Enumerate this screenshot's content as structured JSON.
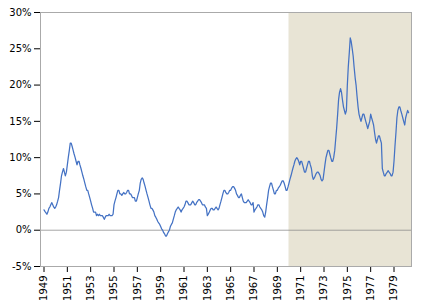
{
  "chart_data": {
    "type": "line",
    "color": "#4472c4",
    "grid": false,
    "xlim": [
      1948.7,
      1980.5
    ],
    "xticks": [
      1949,
      1951,
      1953,
      1955,
      1957,
      1959,
      1961,
      1963,
      1965,
      1967,
      1969,
      1971,
      1973,
      1975,
      1977,
      1979
    ],
    "ylim": [
      -5,
      30
    ],
    "yticks": [
      {
        "value": -5,
        "label": "-5%"
      },
      {
        "value": 0,
        "label": "0%"
      },
      {
        "value": 5,
        "label": "5%"
      },
      {
        "value": 10,
        "label": "10%"
      },
      {
        "value": 15,
        "label": "15%"
      },
      {
        "value": 20,
        "label": "20%"
      },
      {
        "value": 25,
        "label": "25%"
      },
      {
        "value": 30,
        "label": "30%"
      }
    ],
    "shaded_span": [
      1970.0,
      1980.5
    ],
    "shaded_color": "#e8e4d5",
    "zero_line": 0,
    "x": [
      1949.0,
      1949.08,
      1949.17,
      1949.25,
      1949.33,
      1949.42,
      1949.5,
      1949.58,
      1949.67,
      1949.75,
      1949.83,
      1949.92,
      1950.0,
      1950.08,
      1950.17,
      1950.25,
      1950.33,
      1950.42,
      1950.5,
      1950.58,
      1950.67,
      1950.75,
      1950.83,
      1950.92,
      1951.0,
      1951.08,
      1951.17,
      1951.25,
      1951.33,
      1951.42,
      1951.5,
      1951.58,
      1951.67,
      1951.75,
      1951.83,
      1951.92,
      1952.0,
      1952.08,
      1952.17,
      1952.25,
      1952.33,
      1952.42,
      1952.5,
      1952.58,
      1952.67,
      1952.75,
      1952.83,
      1952.92,
      1953.0,
      1953.08,
      1953.17,
      1953.25,
      1953.33,
      1953.42,
      1953.5,
      1953.58,
      1953.67,
      1953.75,
      1953.83,
      1953.92,
      1954.0,
      1954.08,
      1954.17,
      1954.25,
      1954.33,
      1954.42,
      1954.5,
      1954.58,
      1954.67,
      1954.75,
      1954.83,
      1954.92,
      1955.0,
      1955.08,
      1955.17,
      1955.25,
      1955.33,
      1955.42,
      1955.5,
      1955.58,
      1955.67,
      1955.75,
      1955.83,
      1955.92,
      1956.0,
      1956.08,
      1956.17,
      1956.25,
      1956.33,
      1956.42,
      1956.5,
      1956.58,
      1956.67,
      1956.75,
      1956.83,
      1956.92,
      1957.0,
      1957.08,
      1957.17,
      1957.25,
      1957.33,
      1957.42,
      1957.5,
      1957.58,
      1957.67,
      1957.75,
      1957.83,
      1957.92,
      1958.0,
      1958.08,
      1958.17,
      1958.25,
      1958.33,
      1958.42,
      1958.5,
      1958.58,
      1958.67,
      1958.75,
      1958.83,
      1958.92,
      1959.0,
      1959.08,
      1959.17,
      1959.25,
      1959.33,
      1959.42,
      1959.5,
      1959.58,
      1959.67,
      1959.75,
      1959.83,
      1959.92,
      1960.0,
      1960.08,
      1960.17,
      1960.25,
      1960.33,
      1960.42,
      1960.5,
      1960.58,
      1960.67,
      1960.75,
      1960.83,
      1960.92,
      1961.0,
      1961.08,
      1961.17,
      1961.25,
      1961.33,
      1961.42,
      1961.5,
      1961.58,
      1961.67,
      1961.75,
      1961.83,
      1961.92,
      1962.0,
      1962.08,
      1962.17,
      1962.25,
      1962.33,
      1962.42,
      1962.5,
      1962.58,
      1962.67,
      1962.75,
      1962.83,
      1962.92,
      1963.0,
      1963.08,
      1963.17,
      1963.25,
      1963.33,
      1963.42,
      1963.5,
      1963.58,
      1963.67,
      1963.75,
      1963.83,
      1963.92,
      1964.0,
      1964.08,
      1964.17,
      1964.25,
      1964.33,
      1964.42,
      1964.5,
      1964.58,
      1964.67,
      1964.75,
      1964.83,
      1964.92,
      1965.0,
      1965.08,
      1965.17,
      1965.25,
      1965.33,
      1965.42,
      1965.5,
      1965.58,
      1965.67,
      1965.75,
      1965.83,
      1965.92,
      1966.0,
      1966.08,
      1966.17,
      1966.25,
      1966.33,
      1966.42,
      1966.5,
      1966.58,
      1966.67,
      1966.75,
      1966.83,
      1966.92,
      1967.0,
      1967.08,
      1967.17,
      1967.25,
      1967.33,
      1967.42,
      1967.5,
      1967.58,
      1967.67,
      1967.75,
      1967.83,
      1967.92,
      1968.0,
      1968.08,
      1968.17,
      1968.25,
      1968.33,
      1968.42,
      1968.5,
      1968.58,
      1968.67,
      1968.75,
      1968.83,
      1968.92,
      1969.0,
      1969.08,
      1969.17,
      1969.25,
      1969.33,
      1969.42,
      1969.5,
      1969.58,
      1969.67,
      1969.75,
      1969.83,
      1969.92,
      1970.0,
      1970.08,
      1970.17,
      1970.25,
      1970.33,
      1970.42,
      1970.5,
      1970.58,
      1970.67,
      1970.75,
      1970.83,
      1970.92,
      1971.0,
      1971.08,
      1971.17,
      1971.25,
      1971.33,
      1971.42,
      1971.5,
      1971.58,
      1971.67,
      1971.75,
      1971.83,
      1971.92,
      1972.0,
      1972.08,
      1972.17,
      1972.25,
      1972.33,
      1972.42,
      1972.5,
      1972.58,
      1972.67,
      1972.75,
      1972.83,
      1972.92,
      1973.0,
      1973.08,
      1973.17,
      1973.25,
      1973.33,
      1973.42,
      1973.5,
      1973.58,
      1973.67,
      1973.75,
      1973.83,
      1973.92,
      1974.0,
      1974.08,
      1974.17,
      1974.25,
      1974.33,
      1974.42,
      1974.5,
      1974.58,
      1974.67,
      1974.75,
      1974.83,
      1974.92,
      1975.0,
      1975.08,
      1975.17,
      1975.25,
      1975.33,
      1975.42,
      1975.5,
      1975.58,
      1975.67,
      1975.75,
      1975.83,
      1975.92,
      1976.0,
      1976.08,
      1976.17,
      1976.25,
      1976.33,
      1976.42,
      1976.5,
      1976.58,
      1976.67,
      1976.75,
      1976.83,
      1976.92,
      1977.0,
      1977.08,
      1977.17,
      1977.25,
      1977.33,
      1977.42,
      1977.5,
      1977.58,
      1977.67,
      1977.75,
      1977.83,
      1977.92,
      1978.0,
      1978.08,
      1978.17,
      1978.25,
      1978.33,
      1978.42,
      1978.5,
      1978.58,
      1978.67,
      1978.75,
      1978.83,
      1978.92,
      1979.0,
      1979.08,
      1979.17,
      1979.25,
      1979.33,
      1979.42,
      1979.5,
      1979.58,
      1979.67,
      1979.75,
      1979.83,
      1979.92,
      1980.0,
      1980.08,
      1980.17,
      1980.25
    ],
    "values": [
      2.8,
      2.6,
      2.4,
      2.2,
      2.5,
      3.0,
      3.2,
      3.5,
      3.8,
      3.5,
      3.2,
      3.0,
      3.2,
      3.5,
      4.0,
      4.5,
      5.5,
      6.5,
      7.5,
      8.0,
      8.5,
      8.0,
      7.5,
      8.0,
      9.0,
      10.0,
      11.0,
      12.0,
      12.0,
      11.5,
      11.0,
      10.5,
      10.0,
      9.5,
      9.0,
      9.5,
      9.5,
      9.0,
      8.5,
      8.0,
      7.5,
      7.0,
      6.5,
      6.0,
      5.5,
      5.5,
      5.0,
      4.5,
      4.0,
      3.5,
      3.0,
      2.5,
      2.5,
      2.5,
      2.0,
      2.2,
      2.0,
      2.2,
      2.0,
      2.0,
      2.0,
      1.8,
      1.5,
      1.8,
      2.0,
      2.0,
      2.0,
      2.2,
      2.0,
      2.0,
      2.0,
      2.2,
      3.5,
      4.0,
      4.5,
      5.0,
      5.5,
      5.5,
      5.0,
      5.0,
      4.8,
      5.0,
      5.2,
      5.0,
      5.0,
      5.2,
      5.5,
      5.5,
      5.0,
      5.0,
      4.8,
      4.5,
      4.5,
      4.5,
      4.0,
      4.0,
      4.5,
      5.0,
      5.5,
      6.5,
      7.0,
      7.2,
      7.0,
      6.5,
      6.0,
      5.5,
      5.0,
      4.5,
      4.0,
      3.5,
      3.0,
      3.0,
      2.8,
      2.5,
      2.0,
      1.8,
      1.5,
      1.2,
      1.0,
      0.8,
      0.5,
      0.2,
      0.0,
      -0.3,
      -0.5,
      -0.8,
      -0.8,
      -0.5,
      -0.2,
      0.0,
      0.5,
      0.8,
      1.0,
      1.5,
      2.0,
      2.5,
      2.8,
      3.0,
      3.2,
      3.0,
      2.8,
      2.5,
      2.8,
      3.0,
      3.2,
      3.5,
      4.0,
      4.0,
      3.8,
      3.5,
      3.5,
      3.5,
      3.8,
      4.0,
      3.8,
      3.5,
      3.5,
      3.8,
      4.0,
      4.2,
      4.2,
      4.0,
      3.8,
      3.5,
      3.5,
      3.5,
      3.2,
      3.0,
      2.0,
      2.2,
      2.5,
      2.8,
      3.0,
      3.0,
      2.8,
      2.8,
      3.0,
      3.2,
      3.0,
      2.8,
      3.0,
      3.5,
      4.0,
      4.5,
      5.0,
      5.5,
      5.5,
      5.2,
      5.0,
      5.0,
      5.2,
      5.5,
      5.5,
      5.8,
      6.0,
      6.0,
      5.8,
      5.5,
      5.0,
      4.8,
      4.5,
      4.5,
      4.8,
      5.0,
      4.5,
      4.0,
      3.8,
      3.8,
      3.8,
      4.0,
      4.2,
      4.0,
      3.8,
      3.5,
      3.5,
      3.8,
      2.5,
      2.8,
      3.0,
      3.2,
      3.5,
      3.5,
      3.2,
      3.0,
      2.8,
      2.5,
      2.0,
      1.8,
      2.5,
      3.5,
      4.5,
      5.5,
      6.0,
      6.5,
      6.5,
      6.0,
      5.5,
      5.0,
      5.0,
      5.5,
      5.5,
      5.8,
      6.0,
      6.2,
      6.5,
      6.8,
      6.8,
      6.5,
      6.0,
      5.5,
      5.5,
      6.0,
      6.5,
      7.0,
      7.5,
      8.0,
      8.5,
      9.0,
      9.5,
      9.8,
      10.0,
      9.8,
      9.5,
      9.0,
      9.5,
      9.5,
      9.0,
      8.5,
      8.0,
      8.0,
      8.5,
      9.0,
      9.5,
      9.5,
      9.0,
      8.5,
      7.5,
      7.0,
      7.2,
      7.5,
      7.8,
      8.0,
      8.0,
      7.8,
      7.5,
      7.0,
      6.8,
      7.0,
      8.0,
      9.0,
      10.0,
      10.5,
      11.0,
      11.0,
      10.5,
      10.0,
      9.5,
      9.5,
      10.0,
      11.0,
      12.5,
      14.0,
      16.0,
      18.0,
      19.0,
      19.5,
      19.0,
      18.0,
      17.0,
      16.5,
      16.0,
      16.5,
      20.0,
      22.5,
      24.5,
      26.5,
      26.0,
      25.0,
      24.0,
      22.5,
      21.0,
      20.0,
      18.5,
      17.0,
      16.0,
      15.5,
      15.0,
      15.5,
      16.0,
      16.0,
      15.5,
      15.0,
      14.5,
      14.0,
      14.5,
      15.0,
      16.0,
      15.5,
      15.0,
      14.5,
      13.5,
      12.5,
      12.0,
      12.5,
      13.0,
      13.0,
      12.5,
      12.0,
      8.5,
      8.0,
      7.5,
      7.5,
      7.8,
      8.0,
      8.2,
      8.0,
      7.8,
      7.5,
      7.5,
      8.0,
      9.5,
      11.5,
      13.5,
      15.5,
      16.5,
      17.0,
      17.0,
      16.5,
      16.0,
      15.5,
      15.0,
      14.5,
      15.5,
      16.0,
      16.5,
      16.2
    ]
  }
}
